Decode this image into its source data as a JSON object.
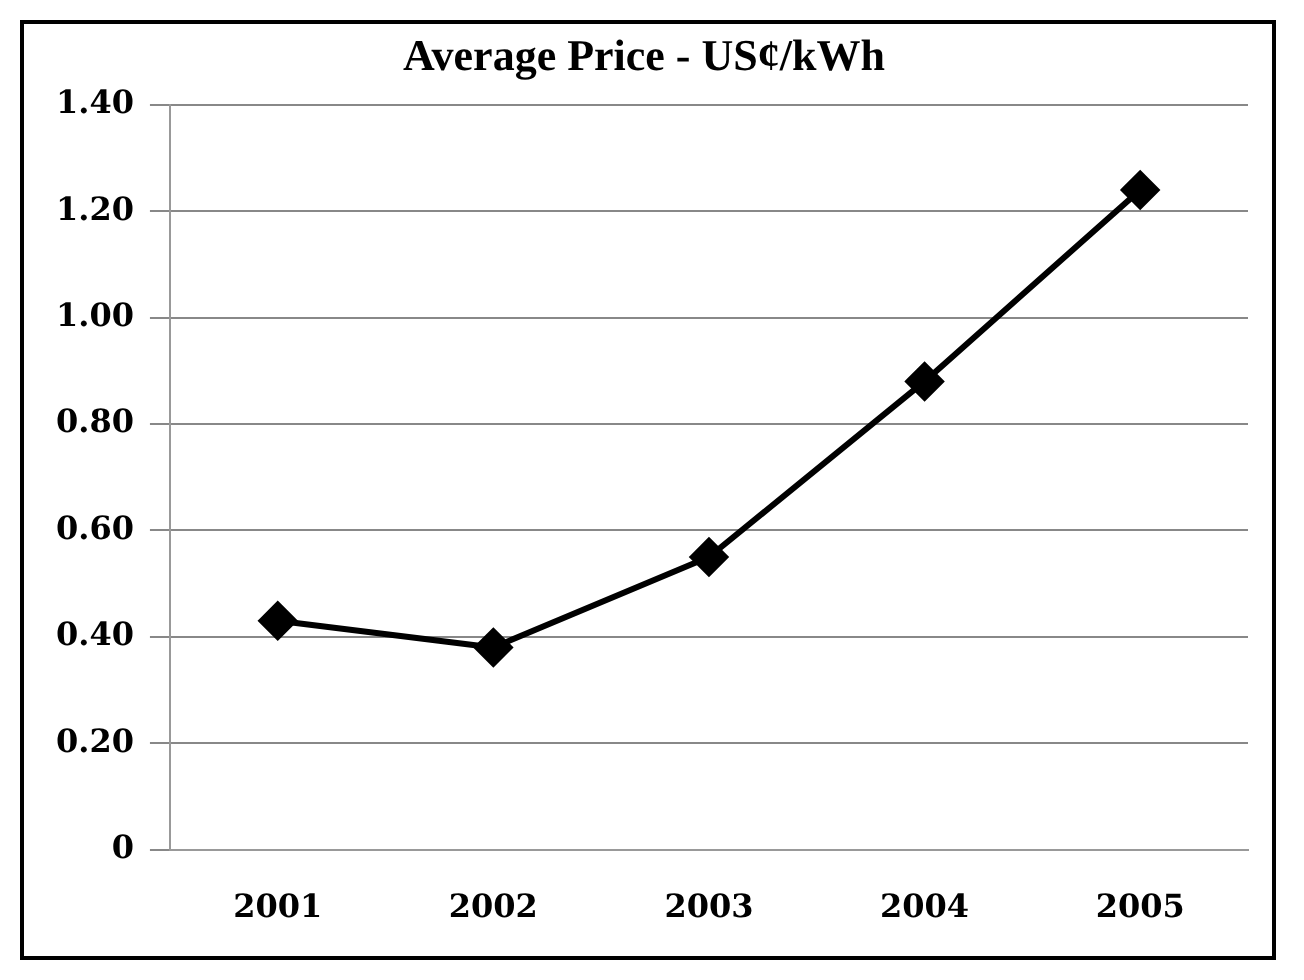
{
  "chart_data": {
    "type": "line",
    "title": "Average Price - US¢/kWh",
    "categories": [
      "2001",
      "2002",
      "2003",
      "2004",
      "2005"
    ],
    "series": [
      {
        "color": "#000000",
        "values": [
          0.43,
          0.38,
          0.55,
          0.88,
          1.24
        ]
      }
    ],
    "ylim": [
      0,
      1.4
    ],
    "yticks": [
      {
        "value": 0,
        "label": "0"
      },
      {
        "value": 0.2,
        "label": "0.20"
      },
      {
        "value": 0.4,
        "label": "0.40"
      },
      {
        "value": 0.6,
        "label": "0.60"
      },
      {
        "value": 0.8,
        "label": "0.80"
      },
      {
        "value": 1,
        "label": "1.00"
      },
      {
        "value": 1.2,
        "label": "1.20"
      },
      {
        "value": 1.4,
        "label": "1.40"
      }
    ],
    "grid": "y",
    "legend": false,
    "marker": "diamond",
    "line_style": "solid"
  }
}
